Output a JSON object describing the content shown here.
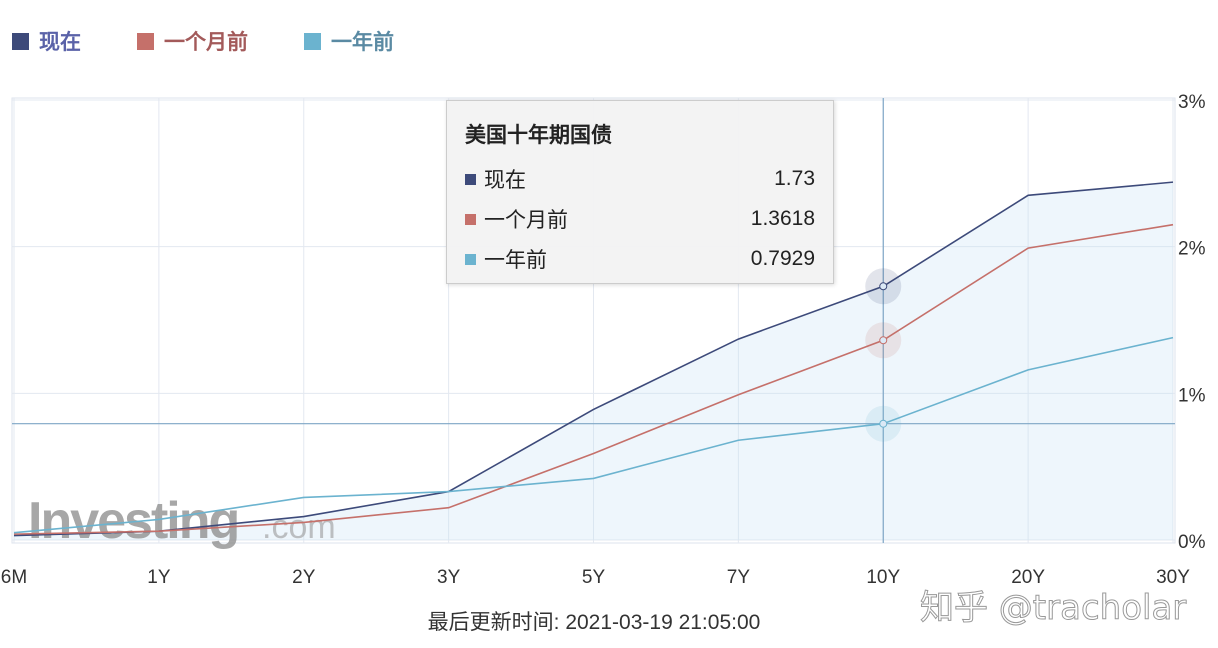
{
  "chart_data": {
    "type": "line",
    "categories": [
      "6M",
      "1Y",
      "2Y",
      "3Y",
      "5Y",
      "7Y",
      "10Y",
      "20Y",
      "30Y"
    ],
    "series": [
      {
        "name": "现在",
        "color": "#3d4a7a",
        "legend_text_color": "#5a62a8",
        "values": [
          0.03,
          0.06,
          0.16,
          0.33,
          0.89,
          1.37,
          1.73,
          2.35,
          2.44
        ]
      },
      {
        "name": "一个月前",
        "color": "#c5706a",
        "legend_text_color": "#a35a5a",
        "values": [
          0.04,
          0.06,
          0.12,
          0.22,
          0.59,
          0.99,
          1.3618,
          1.99,
          2.15
        ]
      },
      {
        "name": "一年前",
        "color": "#6bb3cf",
        "legend_text_color": "#5a8aa3",
        "values": [
          0.05,
          0.14,
          0.29,
          0.33,
          0.42,
          0.68,
          0.7929,
          1.16,
          1.38
        ]
      }
    ],
    "y_ticks": [
      "0%",
      "1%",
      "2%",
      "3%"
    ],
    "ylim": [
      0,
      3
    ],
    "y_axis_side": "right",
    "grid": true,
    "legend_placement": "top-left",
    "crosshair_category": "10Y",
    "tooltip": {
      "title": "美国十年期国债",
      "rows": [
        {
          "label": "现在",
          "value": "1.73"
        },
        {
          "label": "一个月前",
          "value": "1.3618"
        },
        {
          "label": "一年前",
          "value": "0.7929"
        }
      ]
    }
  },
  "watermark_logo": "Investing.com",
  "footer": {
    "updated": "最后更新时间: 2021-03-19 21:05:00"
  },
  "credit": "知乎 @tracholar"
}
